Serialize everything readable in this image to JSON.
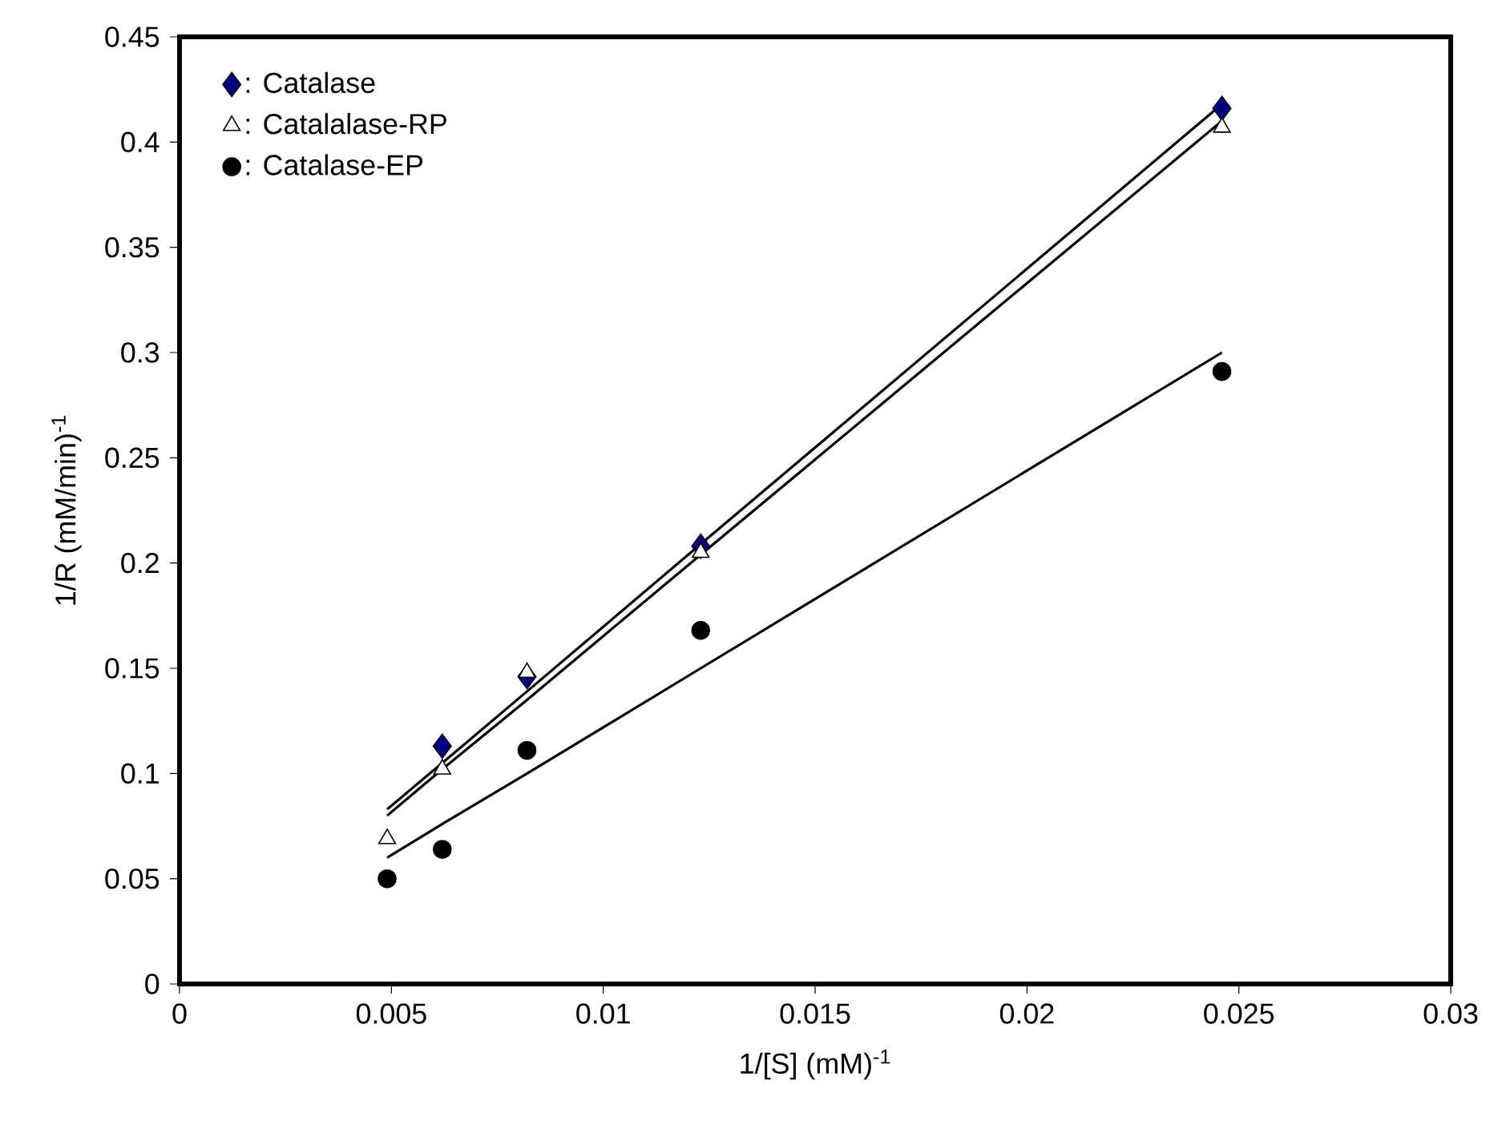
{
  "chart_data": {
    "type": "scatter",
    "xlabel": "1/[S] (mM)$^{-1}$",
    "ylabel": "1/R (mM/min)$^{-1}$",
    "xlim": [
      0,
      0.03
    ],
    "ylim": [
      0,
      0.45
    ],
    "xticks": [
      0,
      0.005,
      0.01,
      0.015,
      0.02,
      0.025,
      0.03
    ],
    "yticks": [
      0,
      0.05,
      0.1,
      0.15,
      0.2,
      0.25,
      0.3,
      0.35,
      0.4,
      0.45
    ],
    "x": [
      0.0049,
      0.0062,
      0.0082,
      0.0123,
      0.0246
    ],
    "grid": false,
    "legend": "top left",
    "series": [
      {
        "name": ": Catalase",
        "marker": "diamond",
        "color": "#000080",
        "values": [
          null,
          0.113,
          0.146,
          0.208,
          0.416
        ]
      },
      {
        "name": ": Catalalase-RP",
        "marker": "triangle",
        "color": "#000000",
        "values": [
          0.069,
          0.102,
          0.148,
          0.205,
          0.407
        ]
      },
      {
        "name": ": Catalase-EP",
        "marker": "circle",
        "color": "#000000",
        "values": [
          0.05,
          0.064,
          0.111,
          0.168,
          0.291
        ]
      },
      {
        "type": "line",
        "marker": "none",
        "color": "#000000",
        "values": [
          0.083,
          0.105,
          0.139,
          0.209,
          0.418
        ]
      },
      {
        "type": "line",
        "marker": "none",
        "color": "#000000",
        "values": [
          0.08,
          0.102,
          0.135,
          0.204,
          0.41
        ]
      },
      {
        "type": "line",
        "marker": "none",
        "color": "#000000",
        "values": [
          0.06,
          0.076,
          0.1,
          0.15,
          0.3
        ]
      }
    ]
  }
}
